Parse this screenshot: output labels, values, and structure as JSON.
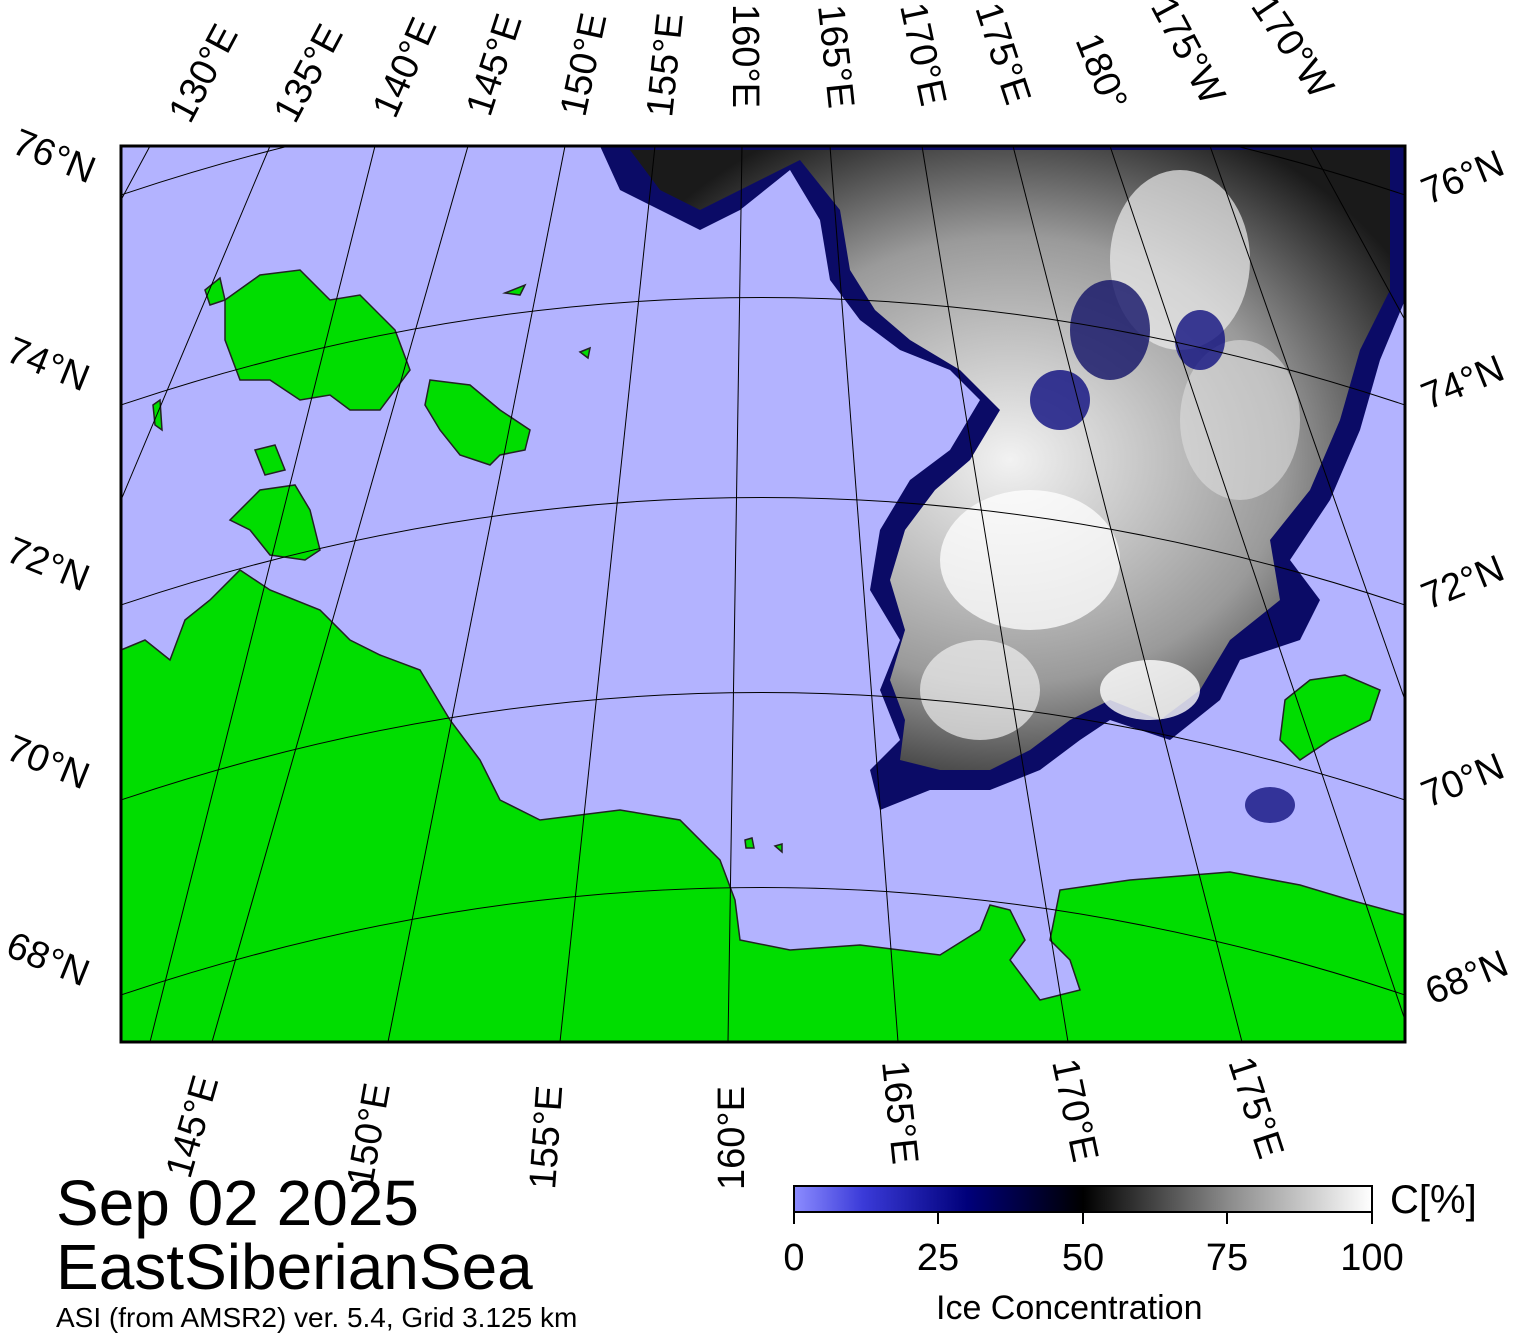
{
  "map": {
    "date": "Sep 02 2025",
    "region": "EastSiberianSea",
    "source": "ASI (from AMSR2) ver. 5.4,  Grid 3.125 km",
    "top_lon_labels": [
      "130°E",
      "135°E",
      "140°E",
      "145°E",
      "150°E",
      "155°E",
      "160°E",
      "165°E",
      "170°E",
      "175°E",
      "180°",
      "175°W",
      "170°W"
    ],
    "bottom_lon_labels": [
      "145°E",
      "150°E",
      "155°E",
      "160°E",
      "165°E",
      "170°E",
      "175°E"
    ],
    "left_lat_labels": [
      "76°N",
      "74°N",
      "72°N",
      "70°N",
      "68°N"
    ],
    "right_lat_labels": [
      "76°N",
      "74°N",
      "72°N",
      "70°N",
      "68°N"
    ],
    "colors": {
      "open_water": "#b3b3ff",
      "land": "#00dd00",
      "coast_mask": "#888888",
      "ice_low": "#8080ff",
      "ice_mid": "#000080",
      "ice_50": "#000000",
      "ice_high": "#ffffff"
    }
  },
  "colorbar": {
    "title": "Ice Concentration",
    "unit": "C[%]",
    "ticks": [
      "0",
      "25",
      "50",
      "75",
      "100"
    ],
    "range": [
      0,
      100
    ]
  }
}
